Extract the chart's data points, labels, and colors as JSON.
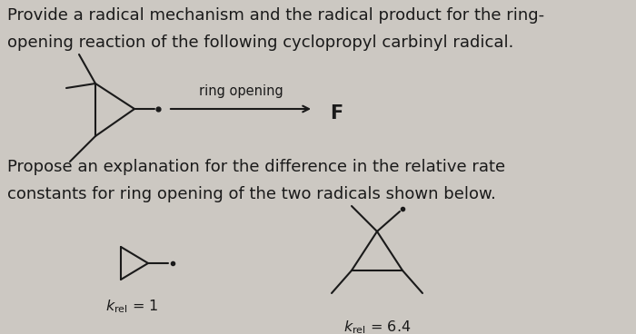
{
  "background_color": "#ccc8c2",
  "text_color": "#1a1a1a",
  "line_color": "#1a1a1a",
  "title_line1": "Provide a radical mechanism and the radical product for the ring-",
  "title_line2": "opening reaction of the following cyclopropyl carbinyl radical.",
  "arrow_label": "ring opening",
  "product_label": "F",
  "second_line1": "Propose an explanation for the difference in the relative rate",
  "second_line2": "constants for ring opening of the two radicals shown below.",
  "font_size_text": 13.0,
  "font_size_small": 10.5,
  "font_size_krel": 11.5
}
